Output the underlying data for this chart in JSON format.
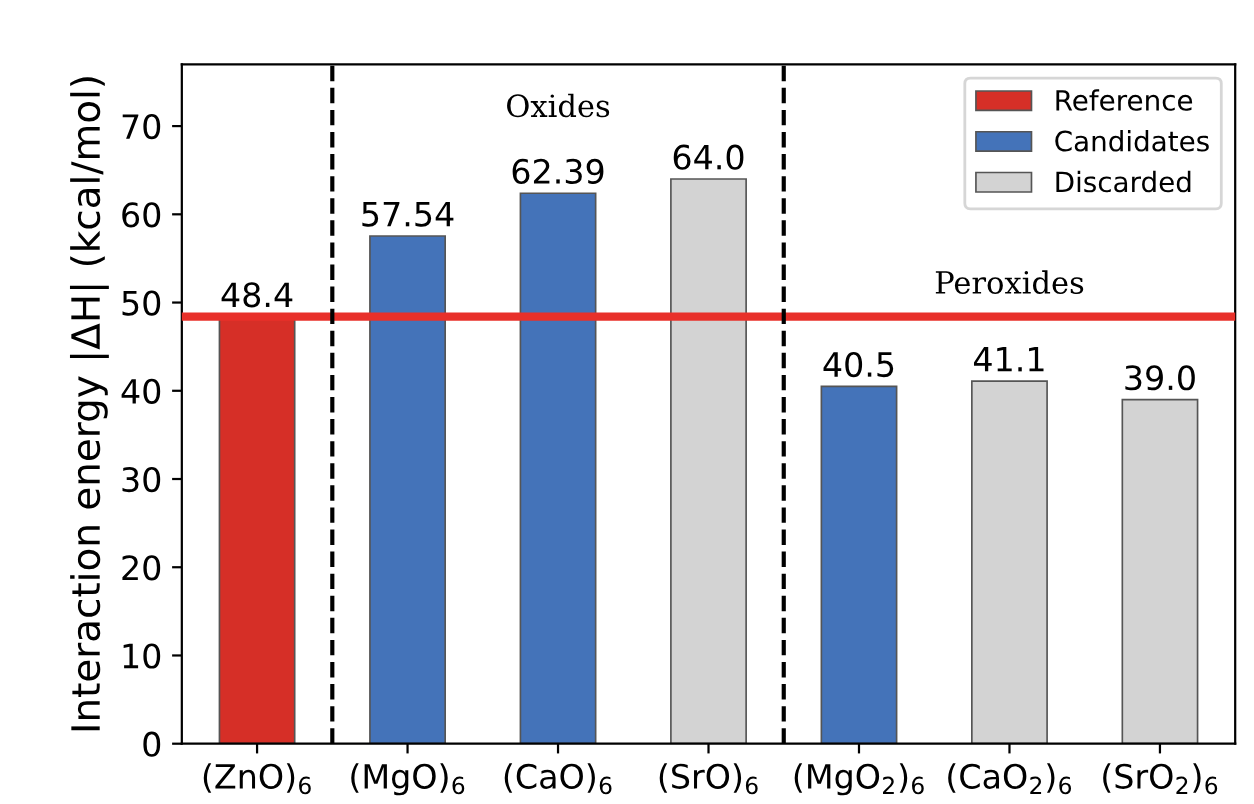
{
  "chart_data": {
    "type": "bar",
    "ylabel": "Interaction energy |ΔH| (kcal/mol)",
    "categories": [
      "(ZnO)$_{6}$",
      "(MgO)$_{6}$",
      "(CaO)$_{6}$",
      "(SrO)$_{6}$",
      "(MgO$_{2}$)$_{6}$",
      "(CaO$_{2}$)$_{6}$",
      "(SrO$_{2}$)$_{6}$"
    ],
    "series": [
      {
        "name": "Reference",
        "color": "#d62f27",
        "values": [
          48.4,
          null,
          null,
          null,
          null,
          null,
          null
        ],
        "value_labels": [
          "48.4",
          null,
          null,
          null,
          null,
          null,
          null
        ]
      },
      {
        "name": "Candidates",
        "color": "#4473b9",
        "values": [
          null,
          57.54,
          62.39,
          null,
          40.5,
          null,
          null
        ],
        "value_labels": [
          null,
          "57.54",
          "62.39",
          null,
          "40.5",
          null,
          null
        ]
      },
      {
        "name": "Discarded",
        "color": "#d3d3d3",
        "values": [
          null,
          null,
          null,
          64.0,
          null,
          41.1,
          39.0
        ],
        "value_labels": [
          null,
          null,
          null,
          "64.0",
          null,
          "41.1",
          "39.0"
        ]
      }
    ],
    "ylim": [
      0,
      77
    ],
    "yticks": [
      0,
      10,
      20,
      30,
      40,
      50,
      60,
      70
    ],
    "grid": false,
    "legend": "top right",
    "ref_lines": [
      {
        "axis": "y",
        "value": 48.4,
        "color": "#e8302a",
        "line_style": "solid"
      }
    ],
    "annotations": [
      "Oxides",
      "Peroxides"
    ]
  }
}
